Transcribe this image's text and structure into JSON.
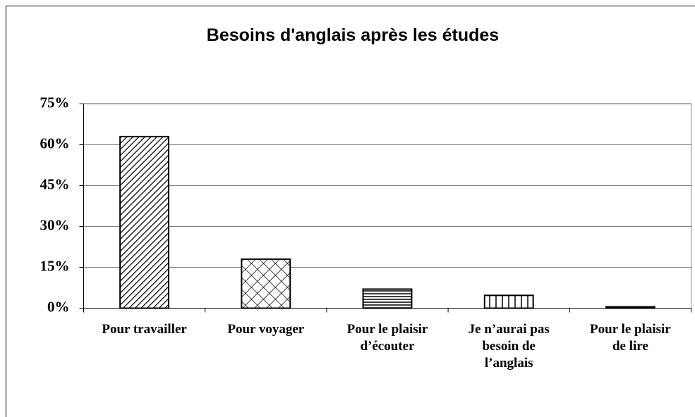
{
  "chart_data": {
    "type": "bar",
    "title": "Besoins d'anglais après les études",
    "categories": [
      "Pour travailler",
      "Pour voyager",
      "Pour le plaisir\nd’écouter",
      "Je n’aurai pas\nbesoin de\nl’anglais",
      "Pour le plaisir\nde lire"
    ],
    "values": [
      63,
      18,
      7,
      4.7,
      0.5
    ],
    "patterns": [
      "diagonal",
      "cross",
      "horizontal",
      "vertical",
      "solid"
    ],
    "color": "#000000",
    "ylim": [
      0,
      75
    ],
    "yticks": [
      {
        "value": 0,
        "label": "0%"
      },
      {
        "value": 15,
        "label": "15%"
      },
      {
        "value": 30,
        "label": "30%"
      },
      {
        "value": 45,
        "label": "45%"
      },
      {
        "value": 60,
        "label": "60%"
      },
      {
        "value": 75,
        "label": "75%"
      }
    ],
    "grid": true
  }
}
